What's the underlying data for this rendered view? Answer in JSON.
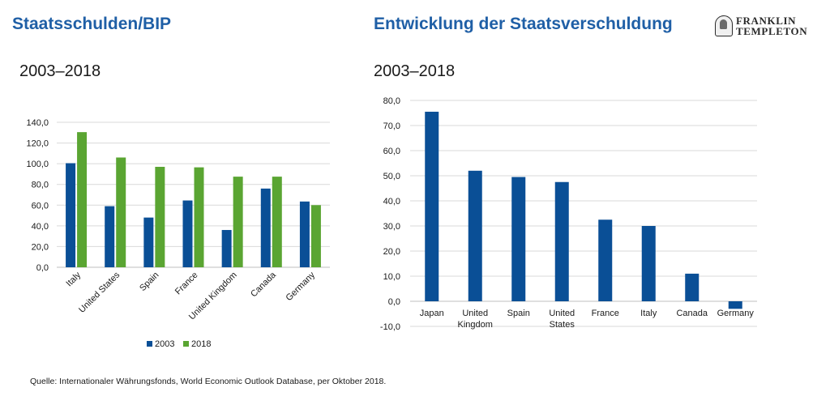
{
  "header": {
    "left_title": "Staatsschulden/BIP",
    "right_title": "Entwicklung der Staatsverschuldung",
    "logo": {
      "line1": "FRANKLIN",
      "line2": "TEMPLETON"
    }
  },
  "footer": {
    "source": "Quelle: Internationaler Währungsfonds, World Economic Outlook Database, per Oktober 2018."
  },
  "colors": {
    "title": "#1f5fa6",
    "series_2003": "#0a4f96",
    "series_2018": "#5aa532",
    "grid": "#d9d9d9"
  },
  "chart_data": [
    {
      "type": "bar",
      "subtitle": "2003–2018",
      "categories": [
        "Italy",
        "United States",
        "Spain",
        "France",
        "United Kingdom",
        "Canada",
        "Germany"
      ],
      "series": [
        {
          "name": "2003",
          "values": [
            100.5,
            59.0,
            48.0,
            64.5,
            36.0,
            76.0,
            63.5
          ]
        },
        {
          "name": "2018",
          "values": [
            130.5,
            106.0,
            97.0,
            96.5,
            87.5,
            87.5,
            60.0
          ]
        }
      ],
      "yticks": [
        "0,0",
        "20,0",
        "40,0",
        "60,0",
        "80,0",
        "100,0",
        "120,0",
        "140,0"
      ],
      "ylim": [
        0,
        140
      ],
      "grid": true,
      "legend": "bottom"
    },
    {
      "type": "bar",
      "subtitle": "2003–2018",
      "categories": [
        "Japan",
        "United Kingdom",
        "Spain",
        "United States",
        "France",
        "Italy",
        "Canada",
        "Germany"
      ],
      "category_lines": [
        [
          "Japan"
        ],
        [
          "United",
          "Kingdom"
        ],
        [
          "Spain"
        ],
        [
          "United",
          "States"
        ],
        [
          "France"
        ],
        [
          "Italy"
        ],
        [
          "Canada"
        ],
        [
          "Germany"
        ]
      ],
      "values": [
        75.5,
        52.0,
        49.5,
        47.5,
        32.5,
        30.0,
        11.0,
        -3.0
      ],
      "yticks": [
        "-10,0",
        "0,0",
        "10,0",
        "20,0",
        "30,0",
        "40,0",
        "50,0",
        "60,0",
        "70,0",
        "80,0"
      ],
      "ylim": [
        -10,
        80
      ],
      "grid": true
    }
  ]
}
